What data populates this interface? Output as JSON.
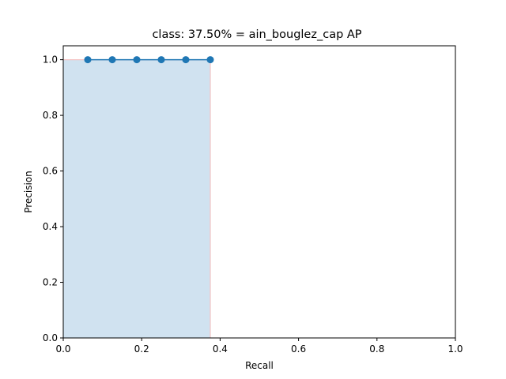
{
  "chart_data": {
    "type": "area",
    "title": "class: 37.50% = ain_bouglez_cap AP",
    "xlabel": "Recall",
    "ylabel": "Precision",
    "xlim": [
      0.0,
      1.0
    ],
    "ylim": [
      0.0,
      1.05
    ],
    "xticks": [
      "0.0",
      "0.2",
      "0.4",
      "0.6",
      "0.8",
      "1.0"
    ],
    "yticks": [
      "0.0",
      "0.2",
      "0.4",
      "0.6",
      "0.8",
      "1.0"
    ],
    "grid": false,
    "series": [
      {
        "values": [
          {
            "x": 0.0625,
            "y": 1.0
          },
          {
            "x": 0.125,
            "y": 1.0
          },
          {
            "x": 0.1875,
            "y": 1.0
          },
          {
            "x": 0.25,
            "y": 1.0
          },
          {
            "x": 0.3125,
            "y": 1.0
          },
          {
            "x": 0.375,
            "y": 1.0
          }
        ]
      }
    ],
    "area": {
      "x": [
        0.0,
        0.0,
        0.375,
        0.375
      ],
      "y": [
        0.0,
        1.0,
        1.0,
        0.0
      ]
    },
    "colors": {
      "line": "#1f77b4",
      "fill": "#d0e2f0",
      "fill_edge": "#f4c4c4"
    }
  }
}
